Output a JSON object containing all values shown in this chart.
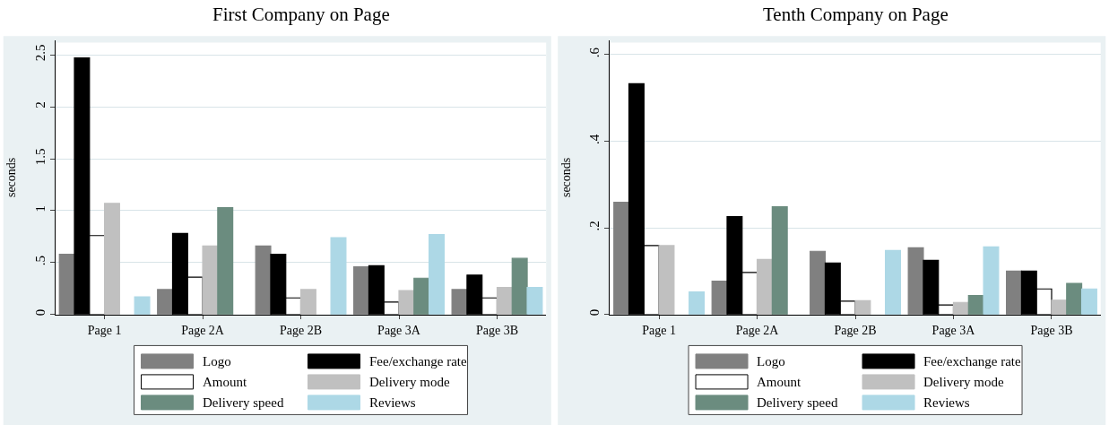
{
  "chart_data": [
    {
      "type": "bar",
      "title": "First Company on Page",
      "ylabel": "seconds",
      "categories": [
        "Page 1",
        "Page 2A",
        "Page 2B",
        "Page 3A",
        "Page 3B"
      ],
      "ylim": [
        0,
        2.64
      ],
      "yticks": [
        0,
        {
          "value": 0.5,
          "label": ".5"
        },
        1,
        1.5,
        2,
        2.5
      ],
      "grid": "y",
      "legend": "bottom",
      "series": [
        {
          "name": "Logo",
          "color": "#808080",
          "values": [
            0.58,
            0.24,
            0.66,
            0.46,
            0.24
          ]
        },
        {
          "name": "Fee/exchange rate",
          "color": "#000000",
          "values": [
            2.47,
            0.78,
            0.58,
            0.47,
            0.38
          ]
        },
        {
          "name": "Amount",
          "color": "#ffffff",
          "values": [
            0.76,
            0.36,
            0.16,
            0.12,
            0.16
          ]
        },
        {
          "name": "Delivery mode",
          "color": "#c0c0c0",
          "values": [
            1.07,
            0.66,
            0.24,
            0.23,
            0.26
          ]
        },
        {
          "name": "Delivery speed",
          "color": "#6b8c7f",
          "values": [
            null,
            1.03,
            null,
            0.35,
            0.54
          ]
        },
        {
          "name": "Reviews",
          "color": "#add8e6",
          "values": [
            0.17,
            null,
            0.74,
            0.77,
            0.26
          ]
        }
      ]
    },
    {
      "type": "bar",
      "title": "Tenth Company on Page",
      "ylabel": "seconds",
      "categories": [
        "Page 1",
        "Page 2A",
        "Page 2B",
        "Page 3A",
        "Page 3B"
      ],
      "ylim": [
        0,
        0.633
      ],
      "yticks": [
        0,
        {
          "value": 0.2,
          "label": ".2"
        },
        {
          "value": 0.4,
          "label": ".4"
        },
        {
          "value": 0.6,
          "label": ".6"
        }
      ],
      "grid": "y",
      "legend": "bottom",
      "series": [
        {
          "name": "Logo",
          "color": "#808080",
          "values": [
            0.259,
            0.077,
            0.146,
            0.154,
            0.1
          ]
        },
        {
          "name": "Fee/exchange rate",
          "color": "#000000",
          "values": [
            0.533,
            0.226,
            0.119,
            0.125,
            0.1
          ]
        },
        {
          "name": "Amount",
          "color": "#ffffff",
          "values": [
            0.159,
            0.097,
            0.031,
            0.022,
            0.059
          ]
        },
        {
          "name": "Delivery mode",
          "color": "#c0c0c0",
          "values": [
            0.159,
            0.127,
            0.032,
            0.028,
            0.033
          ]
        },
        {
          "name": "Delivery speed",
          "color": "#6b8c7f",
          "values": [
            null,
            0.249,
            null,
            0.044,
            0.072
          ]
        },
        {
          "name": "Reviews",
          "color": "#add8e6",
          "values": [
            0.052,
            null,
            0.148,
            0.156,
            0.059
          ]
        }
      ]
    }
  ]
}
